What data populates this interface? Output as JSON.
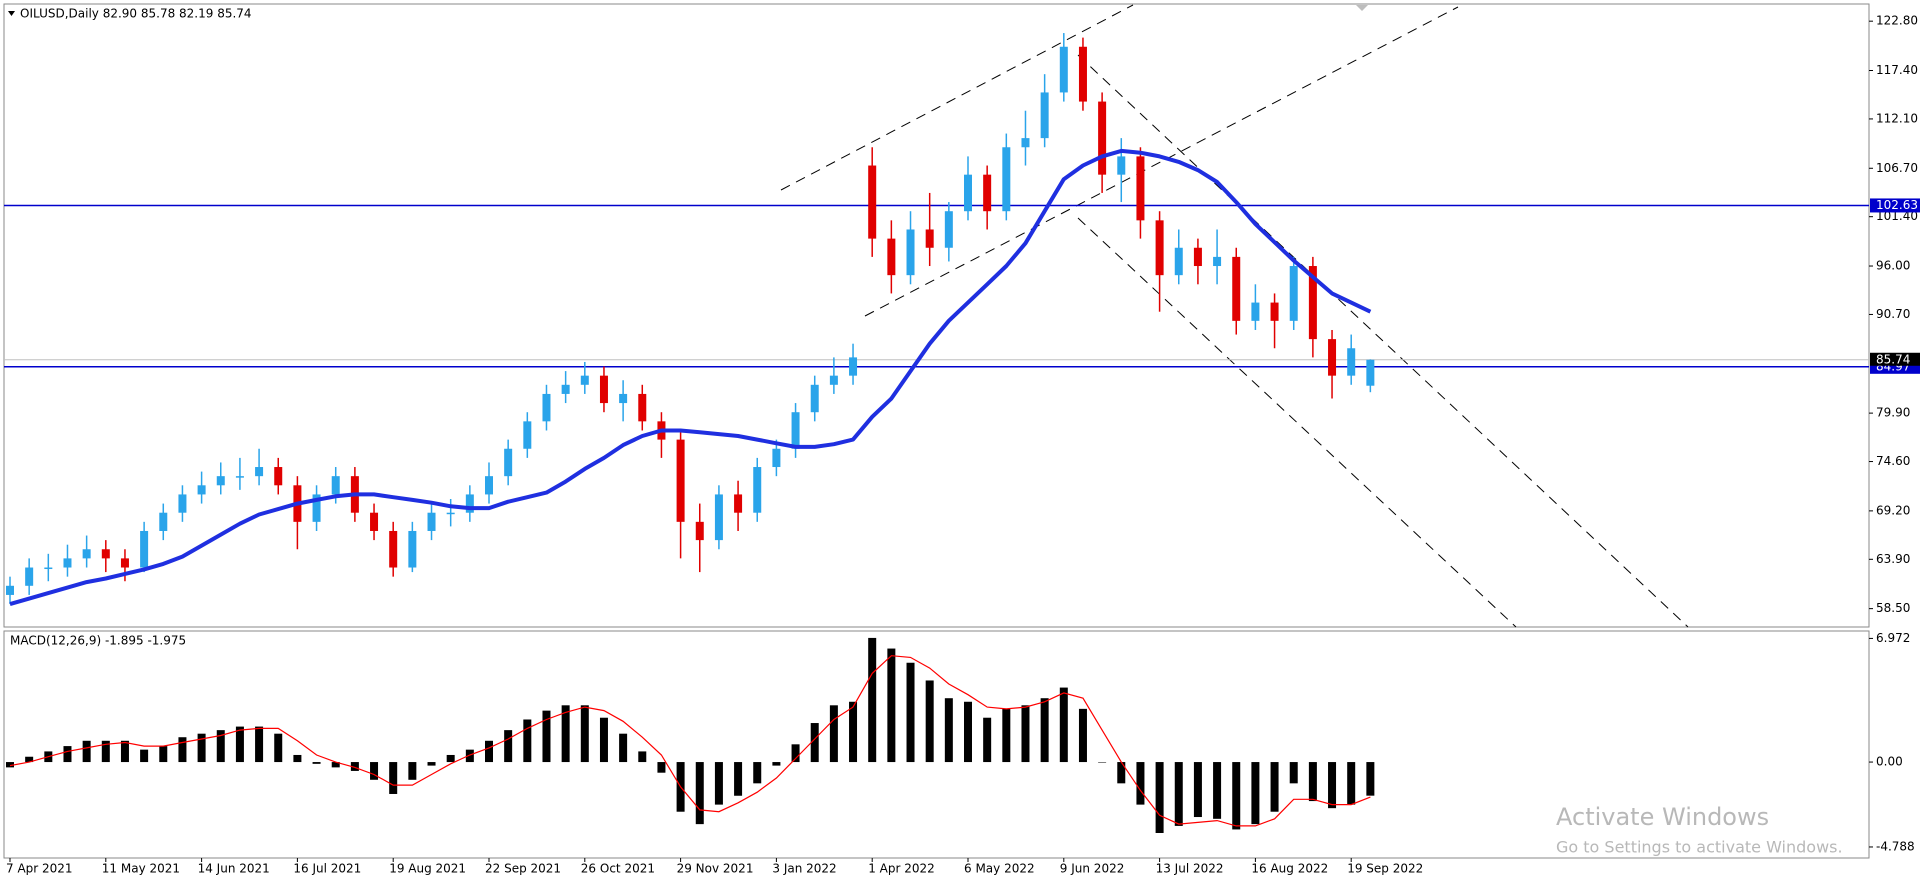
{
  "chart_data": {
    "type": "candlestick",
    "title": "OILUSD,Daily  82.90 85.78 82.19 85.74",
    "categories": [
      "7 Apr 2021",
      null,
      null,
      null,
      null,
      "11 May 2021",
      null,
      null,
      null,
      null,
      "14 Jun 2021",
      null,
      null,
      null,
      null,
      "16 Jul 2021",
      null,
      null,
      null,
      null,
      "19 Aug 2021",
      null,
      null,
      null,
      null,
      "22 Sep 2021",
      null,
      null,
      null,
      null,
      "26 Oct 2021",
      null,
      null,
      null,
      null,
      "29 Nov 2021",
      null,
      null,
      null,
      null,
      "3 Jan 2022",
      null,
      null,
      null,
      null,
      "1 Apr 2022",
      null,
      null,
      null,
      null,
      "6 May 2022",
      null,
      null,
      null,
      null,
      "9 Jun 2022",
      null,
      null,
      null,
      null,
      "13 Jul 2022",
      null,
      null,
      null,
      null,
      "16 Aug 2022",
      null,
      null,
      null,
      null,
      "19 Sep 2022",
      null
    ],
    "open": [
      60,
      61,
      63,
      63,
      64,
      65,
      64,
      63,
      67,
      69,
      71,
      72,
      73,
      73,
      74,
      72,
      68,
      71,
      73,
      69,
      67,
      63,
      67,
      69,
      69,
      71,
      73,
      76,
      79,
      82,
      83,
      84,
      81,
      82,
      79,
      77,
      68,
      66,
      71,
      69,
      74,
      76,
      80,
      83,
      84,
      107,
      99,
      95,
      100,
      98,
      102,
      106,
      102,
      109,
      110,
      115,
      120,
      114,
      106,
      108,
      101,
      95,
      98,
      96,
      97,
      90,
      92,
      90,
      96,
      88,
      84,
      82.9
    ],
    "high": [
      62,
      64,
      64.5,
      65.5,
      66.5,
      66,
      65,
      68,
      70,
      72,
      73.5,
      74.5,
      75,
      76,
      75,
      73,
      72,
      74,
      74,
      70,
      68,
      68,
      70,
      70.5,
      72,
      74.5,
      77,
      80,
      83,
      84.5,
      85.5,
      85,
      83.5,
      83,
      80,
      78,
      70,
      72,
      72.5,
      75,
      77,
      81,
      84,
      86,
      87.5,
      109,
      101,
      102,
      104,
      103,
      108,
      107,
      110.5,
      113,
      117,
      121.5,
      121,
      115,
      110,
      109,
      102,
      100,
      99,
      100,
      98,
      94,
      93,
      97,
      97,
      89,
      88.5,
      85.78
    ],
    "low": [
      59,
      60,
      61.5,
      62,
      63,
      62.5,
      61.5,
      62.5,
      66,
      68,
      70,
      71,
      71.5,
      72,
      71,
      65,
      67,
      70,
      68,
      66,
      62,
      62.5,
      66,
      67.5,
      68,
      70,
      72,
      75,
      78,
      81,
      82,
      80,
      79,
      78,
      75,
      64,
      62.5,
      65,
      67,
      68,
      73,
      75,
      79,
      82,
      83,
      97,
      93,
      94,
      96,
      96.5,
      101,
      100,
      101,
      107,
      109,
      114,
      113,
      104,
      103,
      99,
      91,
      94,
      94,
      94,
      88.5,
      89,
      87,
      89,
      86,
      81.5,
      83,
      82.19
    ],
    "close": [
      61,
      63,
      63,
      64,
      65,
      64,
      63,
      67,
      69,
      71,
      72,
      73,
      73,
      74,
      72,
      68,
      71,
      73,
      69,
      67,
      63,
      67,
      69,
      69,
      71,
      73,
      76,
      79,
      82,
      83,
      84,
      81,
      82,
      79,
      77,
      68,
      66,
      71,
      69,
      74,
      76,
      80,
      83,
      84,
      86,
      99,
      95,
      100,
      98,
      102,
      106,
      102,
      109,
      110,
      115,
      120,
      114,
      106,
      108,
      101,
      95,
      98,
      96,
      97,
      90,
      92,
      90,
      96,
      88,
      84,
      87,
      85.74
    ],
    "up_color": "#2aa4ea",
    "down_color": "#e00000",
    "ma": {
      "color": "#1f2fe0",
      "values": [
        59.0,
        59.6,
        60.2,
        60.8,
        61.4,
        61.8,
        62.3,
        62.8,
        63.4,
        64.2,
        65.4,
        66.6,
        67.8,
        68.8,
        69.4,
        70.0,
        70.4,
        70.8,
        71.0,
        71.0,
        70.7,
        70.4,
        70.1,
        69.7,
        69.5,
        69.5,
        70.2,
        70.7,
        71.2,
        72.4,
        73.8,
        75.0,
        76.4,
        77.4,
        78.0,
        78.0,
        77.8,
        77.6,
        77.4,
        77.0,
        76.6,
        76.2,
        76.2,
        76.5,
        77.0,
        79.5,
        81.5,
        84.5,
        87.5,
        90.0,
        92.0,
        94.0,
        96.0,
        98.5,
        102.0,
        105.5,
        107.0,
        108.0,
        108.6,
        108.4,
        108.0,
        107.4,
        106.5,
        105.2,
        103.0,
        100.6,
        98.6,
        96.6,
        94.8,
        93.0,
        92.0,
        91.0
      ]
    },
    "levels": [
      102.63,
      84.97
    ],
    "level_color": "#0000cc",
    "last_price": 85.74,
    "ylim": [
      56.49,
      124.68
    ],
    "yticks": [
      {
        "value": 122.8,
        "label": "122.80"
      },
      {
        "value": 117.4,
        "label": "117.40"
      },
      {
        "value": 112.1,
        "label": "112.10"
      },
      {
        "value": 106.7,
        "label": "106.70"
      },
      {
        "value": 101.4,
        "label": "101.40"
      },
      {
        "value": 96,
        "label": "96.00"
      },
      {
        "value": 90.7,
        "label": "90.70"
      },
      {
        "value": 79.9,
        "label": "79.90"
      },
      {
        "value": 74.6,
        "label": "74.60"
      },
      {
        "value": 69.2,
        "label": "69.20"
      },
      {
        "value": 63.9,
        "label": "63.90"
      },
      {
        "value": 58.5,
        "label": "58.50"
      }
    ],
    "macd": {
      "label": "MACD(12,26,9) -1.895 -1.975",
      "histogram_color": "#000000",
      "signal_color": "#ff0000",
      "histogram": [
        -0.3,
        0.3,
        0.6,
        0.9,
        1.2,
        1.2,
        1.2,
        0.7,
        0.9,
        1.4,
        1.6,
        1.8,
        2.0,
        2.0,
        1.6,
        0.4,
        -0.1,
        -0.3,
        -0.5,
        -1.0,
        -1.8,
        -1.0,
        -0.2,
        0.4,
        0.7,
        1.2,
        1.8,
        2.4,
        2.9,
        3.2,
        3.2,
        2.5,
        1.6,
        0.6,
        -0.6,
        -2.8,
        -3.5,
        -2.4,
        -1.9,
        -1.2,
        -0.2,
        1.0,
        2.2,
        3.2,
        3.4,
        7.0,
        6.4,
        5.6,
        4.6,
        3.6,
        3.4,
        2.5,
        3.0,
        3.2,
        3.6,
        4.2,
        3.0,
        0.0,
        -1.2,
        -2.4,
        -4.0,
        -3.6,
        -3.1,
        -3.2,
        -3.8,
        -3.5,
        -2.8,
        -1.2,
        -2.2,
        -2.6,
        -2.4,
        -1.895
      ],
      "signal": [
        -0.2,
        0.0,
        0.3,
        0.6,
        0.8,
        1.0,
        1.1,
        0.9,
        0.9,
        1.1,
        1.3,
        1.5,
        1.8,
        1.9,
        1.9,
        1.2,
        0.4,
        0.0,
        -0.3,
        -0.7,
        -1.3,
        -1.3,
        -0.7,
        -0.1,
        0.4,
        0.8,
        1.3,
        1.9,
        2.4,
        2.8,
        3.1,
        2.9,
        2.3,
        1.4,
        0.4,
        -1.4,
        -2.7,
        -2.8,
        -2.3,
        -1.7,
        -0.9,
        0.2,
        1.3,
        2.4,
        3.1,
        5.0,
        6.0,
        5.9,
        5.3,
        4.4,
        3.8,
        3.1,
        3.0,
        3.1,
        3.4,
        3.9,
        3.6,
        1.8,
        0.0,
        -1.6,
        -3.0,
        -3.5,
        -3.4,
        -3.3,
        -3.6,
        -3.6,
        -3.2,
        -2.1,
        -2.1,
        -2.4,
        -2.4,
        -1.975
      ],
      "ylim": [
        -5.41,
        7.39
      ],
      "yticks": [
        6.972,
        {
          "value": 0,
          "label": "0.00"
        },
        -4.788
      ]
    },
    "watermark": {
      "title": "Activate Windows",
      "subtitle": "Go to Settings to activate Windows."
    }
  }
}
